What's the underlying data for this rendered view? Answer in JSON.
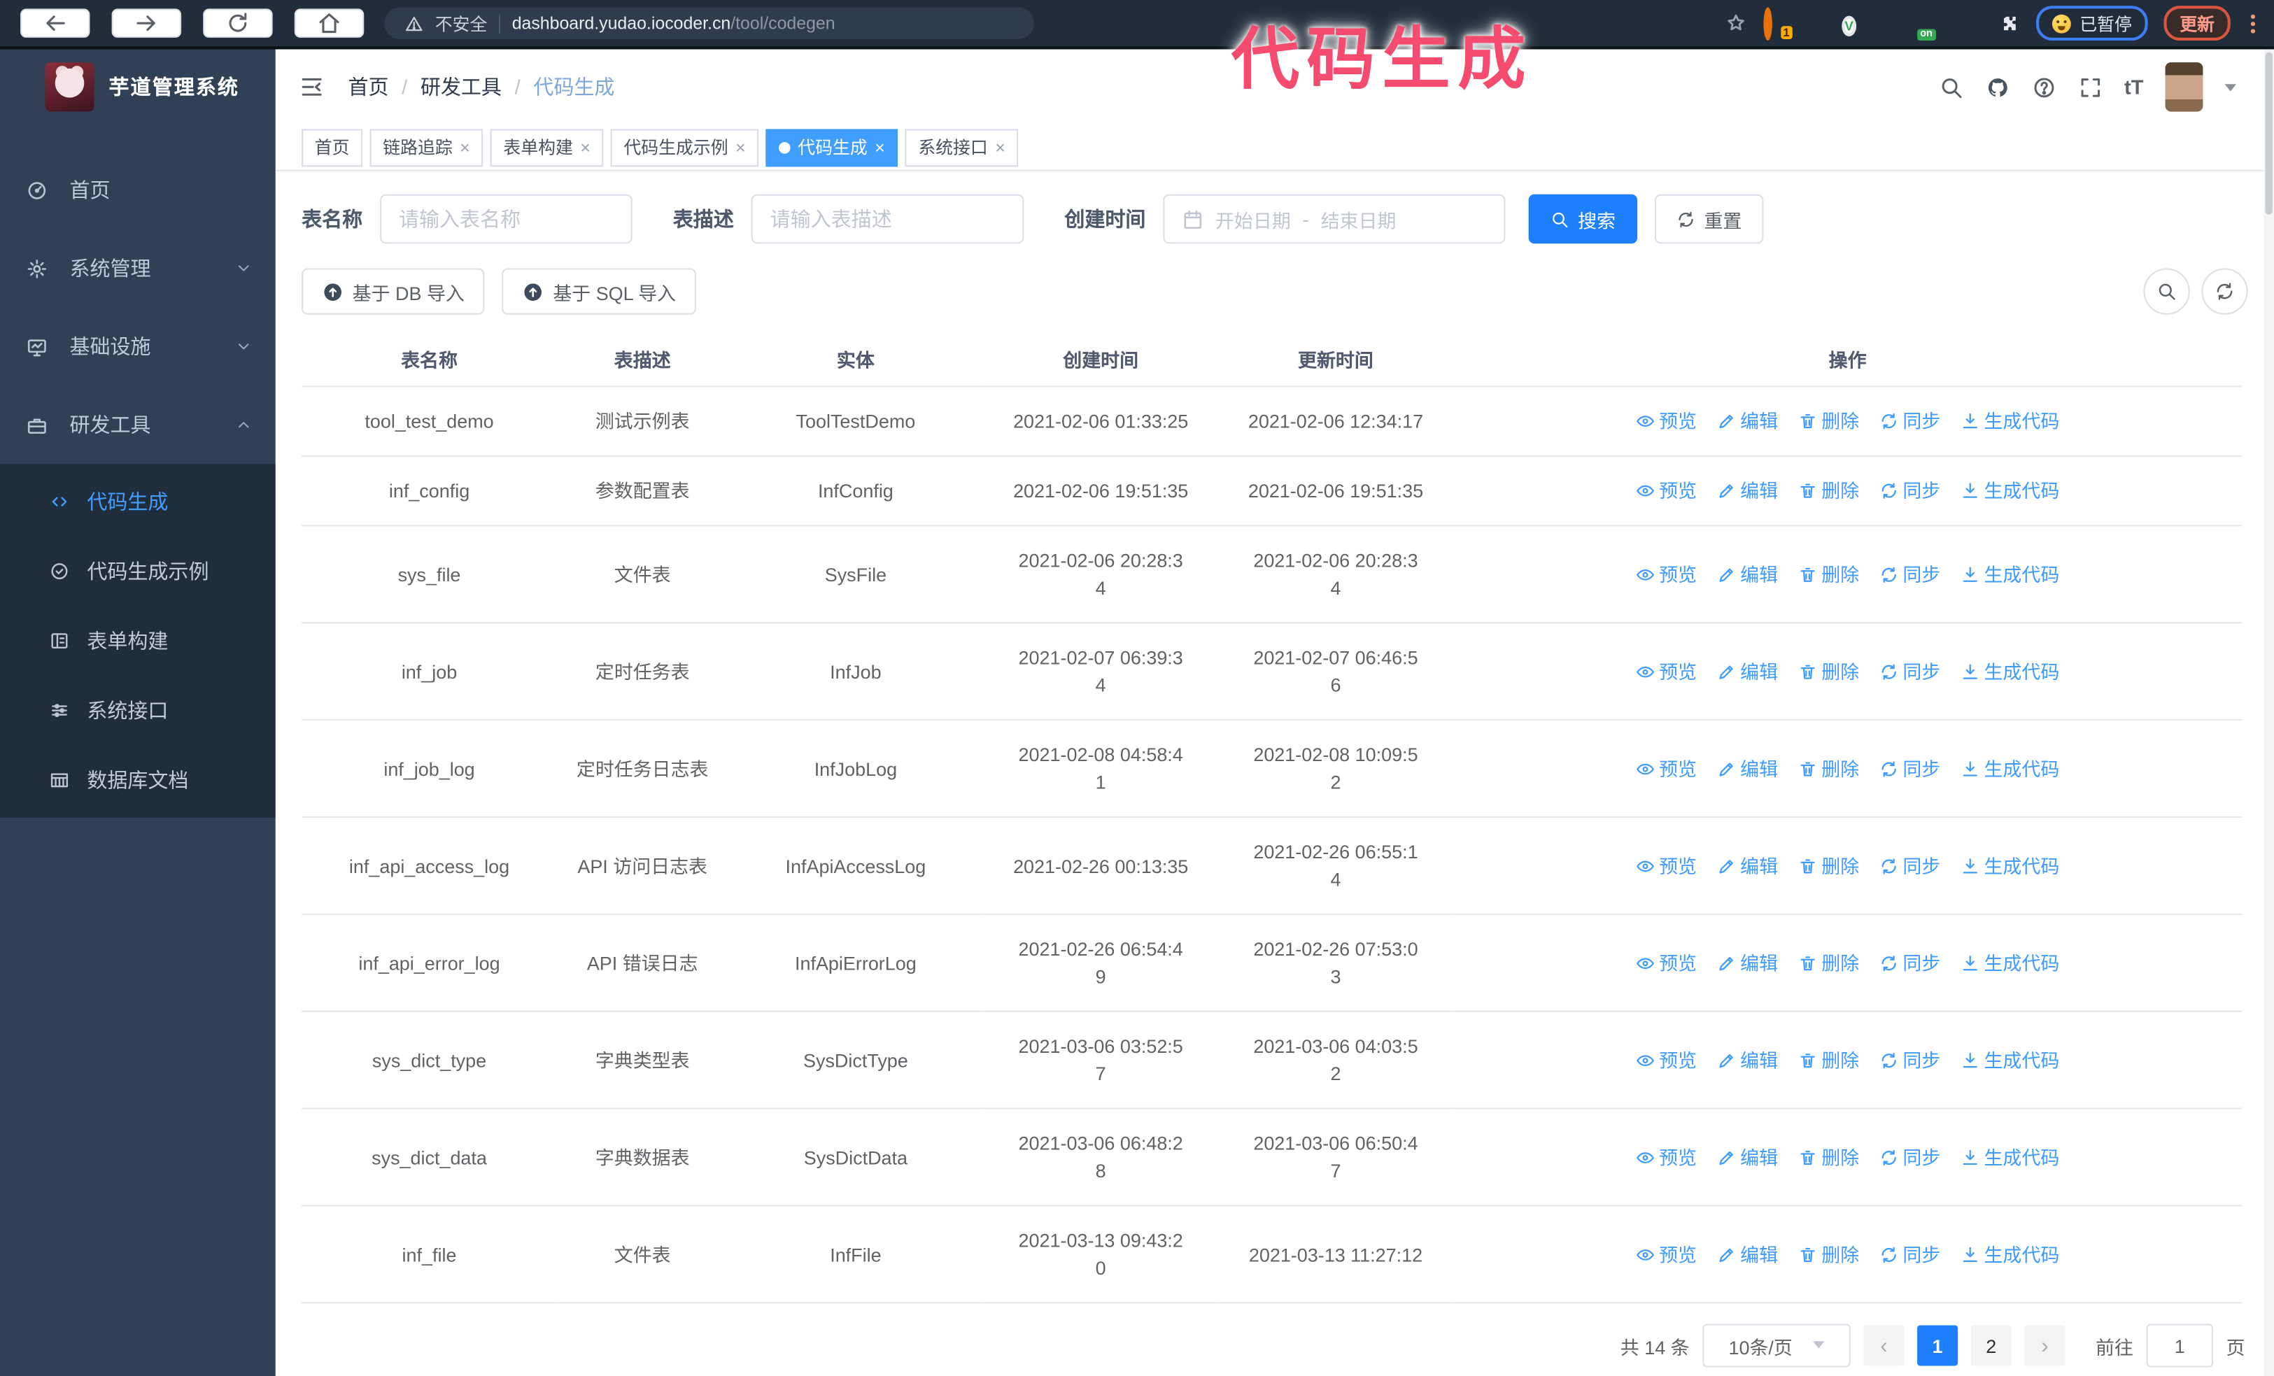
{
  "browser": {
    "security_label": "不安全",
    "url_domain": "dashboard.yudao.iocoder.cn",
    "url_path": "/tool/codegen",
    "ext_badge": "1",
    "ext_on_badge": "on",
    "ext_green_label": "V",
    "paused_label": "已暂停",
    "update_label": "更新"
  },
  "annotation": {
    "text": "代码生成",
    "color": "#f54b6e"
  },
  "sidebar": {
    "title": "芋道管理系统",
    "items": [
      {
        "label": "首页"
      },
      {
        "label": "系统管理"
      },
      {
        "label": "基础设施"
      },
      {
        "label": "研发工具"
      }
    ],
    "subitems": [
      {
        "label": "代码生成",
        "active": true
      },
      {
        "label": "代码生成示例"
      },
      {
        "label": "表单构建"
      },
      {
        "label": "系统接口"
      },
      {
        "label": "数据库文档"
      }
    ]
  },
  "breadcrumb": {
    "items": [
      "首页",
      "研发工具",
      "代码生成"
    ],
    "separator": "/"
  },
  "tags": [
    {
      "label": "首页",
      "closable": false,
      "active": false
    },
    {
      "label": "链路追踪",
      "closable": true,
      "active": false
    },
    {
      "label": "表单构建",
      "closable": true,
      "active": false
    },
    {
      "label": "代码生成示例",
      "closable": true,
      "active": false
    },
    {
      "label": "代码生成",
      "closable": true,
      "active": true
    },
    {
      "label": "系统接口",
      "closable": true,
      "active": false
    }
  ],
  "filters": {
    "name_label": "表名称",
    "name_placeholder": "请输入表名称",
    "desc_label": "表描述",
    "desc_placeholder": "请输入表描述",
    "time_label": "创建时间",
    "start_placeholder": "开始日期",
    "range_separator": "-",
    "end_placeholder": "结束日期",
    "search_label": "搜索",
    "reset_label": "重置"
  },
  "toolbar": {
    "db_import_label": "基于 DB 导入",
    "sql_import_label": "基于 SQL 导入"
  },
  "table": {
    "columns": [
      "表名称",
      "表描述",
      "实体",
      "创建时间",
      "更新时间",
      "操作"
    ],
    "ops": [
      "预览",
      "编辑",
      "删除",
      "同步",
      "生成代码"
    ],
    "rows": [
      {
        "name": "tool_test_demo",
        "desc": "测试示例表",
        "entity": "ToolTestDemo",
        "created": [
          "2021-02-06 01:33:25"
        ],
        "updated": [
          "2021-02-06 12:34:17"
        ]
      },
      {
        "name": "inf_config",
        "desc": "参数配置表",
        "entity": "InfConfig",
        "created": [
          "2021-02-06 19:51:35"
        ],
        "updated": [
          "2021-02-06 19:51:35"
        ]
      },
      {
        "name": "sys_file",
        "desc": "文件表",
        "entity": "SysFile",
        "created": [
          "2021-02-06 20:28:3",
          "4"
        ],
        "updated": [
          "2021-02-06 20:28:3",
          "4"
        ]
      },
      {
        "name": "inf_job",
        "desc": "定时任务表",
        "entity": "InfJob",
        "created": [
          "2021-02-07 06:39:3",
          "4"
        ],
        "updated": [
          "2021-02-07 06:46:5",
          "6"
        ]
      },
      {
        "name": "inf_job_log",
        "desc": "定时任务日志表",
        "entity": "InfJobLog",
        "created": [
          "2021-02-08 04:58:4",
          "1"
        ],
        "updated": [
          "2021-02-08 10:09:5",
          "2"
        ]
      },
      {
        "name": "inf_api_access_log",
        "desc": "API 访问日志表",
        "entity": "InfApiAccessLog",
        "created": [
          "2021-02-26 00:13:35"
        ],
        "updated": [
          "2021-02-26 06:55:1",
          "4"
        ]
      },
      {
        "name": "inf_api_error_log",
        "desc": "API 错误日志",
        "entity": "InfApiErrorLog",
        "created": [
          "2021-02-26 06:54:4",
          "9"
        ],
        "updated": [
          "2021-02-26 07:53:0",
          "3"
        ]
      },
      {
        "name": "sys_dict_type",
        "desc": "字典类型表",
        "entity": "SysDictType",
        "created": [
          "2021-03-06 03:52:5",
          "7"
        ],
        "updated": [
          "2021-03-06 04:03:5",
          "2"
        ]
      },
      {
        "name": "sys_dict_data",
        "desc": "字典数据表",
        "entity": "SysDictData",
        "created": [
          "2021-03-06 06:48:2",
          "8"
        ],
        "updated": [
          "2021-03-06 06:50:4",
          "7"
        ]
      },
      {
        "name": "inf_file",
        "desc": "文件表",
        "entity": "InfFile",
        "created": [
          "2021-03-13 09:43:2",
          "0"
        ],
        "updated": [
          "2021-03-13 11:27:12"
        ]
      }
    ]
  },
  "pagination": {
    "total": "共 14 条",
    "page_size": "10条/页",
    "prev": "‹",
    "next": "›",
    "pages": [
      "1",
      "2"
    ],
    "active_page": "1",
    "goto_label": "前往",
    "goto_value": "1",
    "unit": "页"
  },
  "colors": {
    "accent": "#409eff",
    "primary_button": "#1d80fa",
    "sidebar_bg": "#304156",
    "submenu_bg": "#1f2d3d",
    "annotation": "#f54b6e"
  }
}
